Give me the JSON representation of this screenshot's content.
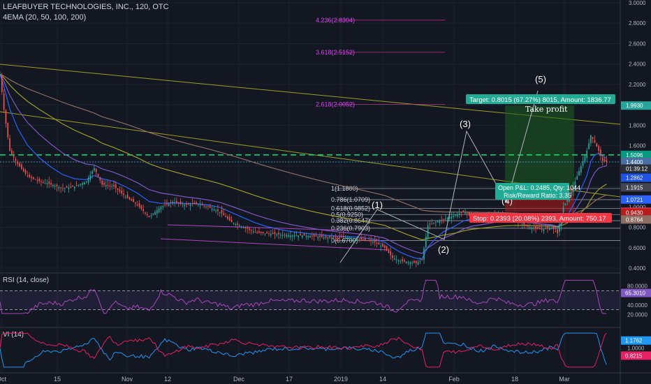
{
  "header": {
    "title": "LEAFBUYER TECHNOLOGIES, INC., 120, OTC",
    "indicator": "4EMA (20, 50, 100, 200)"
  },
  "rsi": {
    "label": "RSI (14, close)",
    "axis_ticks": [
      "80.0000",
      "40.0000",
      "20.0000"
    ],
    "current": "65.3010",
    "upper_band": 70,
    "lower_band": 30
  },
  "vi": {
    "label": "VI (14)",
    "axis_ticks": [
      "1.0000"
    ],
    "current_plus": "1.1762",
    "current_minus": "0.8215"
  },
  "time_axis": [
    "Oct",
    "15",
    "Nov",
    "12",
    "Dec",
    "17",
    "2019",
    "14",
    "Feb",
    "18",
    "Mar"
  ],
  "fib_levels": [
    {
      "label": "4.236(2.8304)",
      "value": 2.8304
    },
    {
      "label": "3.618(2.5152)",
      "value": 2.5152
    },
    {
      "label": "2.618(2.0052)",
      "value": 2.0052
    },
    {
      "label": "1(1.1800)",
      "value": 1.18
    },
    {
      "label": "0.786(1.0709)",
      "value": 1.0709
    },
    {
      "label": "0.618(0.9852)",
      "value": 0.9852
    },
    {
      "label": "0.5(0.9250)",
      "value": 0.925
    },
    {
      "label": "0.382(0.8647)",
      "value": 0.8647
    },
    {
      "label": "0.236(0.7903)",
      "value": 0.7903
    },
    {
      "label": "0(0.6700)",
      "value": 0.67
    }
  ],
  "waves": [
    "(1)",
    "(2)",
    "(3)",
    "(4)",
    "(5)"
  ],
  "position": {
    "target": "Target: 0.8015 (67.27%) 8015, Amount: 1836.77",
    "take_profit": "Take profit",
    "open_pnl": "Open P&L: 0.2485, Qty: 1044",
    "risk_reward": "Risk/Reward Ratio: 3.35",
    "stop": "Stop: 0.2393 (20.08%) 2393, Amount: 750.17",
    "entry": 1.1915,
    "target_price": 1.993,
    "stop_price": 0.9522
  },
  "price_axis_labels": [
    {
      "text": "1.9930",
      "value": 1.993,
      "color": "#26a69a"
    },
    {
      "text": "1.5096",
      "value": 1.5096,
      "color": "#089981"
    },
    {
      "text": "1.4400",
      "value": 1.44,
      "color": "#4a6fa5"
    },
    {
      "text": "01:39:12",
      "value": 1.375,
      "color": "#2a2e39"
    },
    {
      "text": "1.2862",
      "value": 1.2862,
      "color": "#1e53e5"
    },
    {
      "text": "1.1915",
      "value": 1.1915,
      "color": "#434651"
    },
    {
      "text": "1.0721",
      "value": 1.0721,
      "color": "#2962ff"
    },
    {
      "text": "0.9522",
      "value": 0.9522,
      "color": "#f23645"
    },
    {
      "text": "0.9430",
      "value": 0.943,
      "color": "#b71c1c"
    },
    {
      "text": "0.8764",
      "value": 0.8764,
      "color": "#8d6e63"
    }
  ],
  "chart_data": {
    "type": "candlestick",
    "title": "LEAFBUYER TECHNOLOGIES, INC., 120, OTC",
    "y_ticks": [
      3.0,
      2.8,
      2.6,
      2.4,
      2.2,
      2.0,
      1.8,
      1.6,
      1.4,
      1.2,
      1.0,
      0.8,
      0.6,
      0.4
    ],
    "y_tick_labels": [
      "3.0000",
      "2.8000",
      "2.6000",
      "2.4000",
      "2.2000",
      "2.0000",
      "1.8000",
      "1.6000",
      "1.4000",
      "1.2000",
      "1.0000",
      "0.8000",
      "0.6000",
      "0.4000"
    ],
    "ylim": [
      0.38,
      3.0
    ],
    "x_labels": [
      "Oct",
      "15",
      "Nov",
      "12",
      "Dec",
      "17",
      "2019",
      "14",
      "Feb",
      "18",
      "Mar"
    ],
    "close_path": [
      {
        "x": 0,
        "y": 2.3
      },
      {
        "x": 2,
        "y": 1.95
      },
      {
        "x": 5,
        "y": 1.55
      },
      {
        "x": 9,
        "y": 1.42
      },
      {
        "x": 14,
        "y": 1.3
      },
      {
        "x": 20,
        "y": 1.25
      },
      {
        "x": 26,
        "y": 1.22
      },
      {
        "x": 32,
        "y": 1.18
      },
      {
        "x": 38,
        "y": 1.2
      },
      {
        "x": 44,
        "y": 1.25
      },
      {
        "x": 48,
        "y": 1.38
      },
      {
        "x": 52,
        "y": 1.22
      },
      {
        "x": 58,
        "y": 1.2
      },
      {
        "x": 64,
        "y": 1.1
      },
      {
        "x": 70,
        "y": 1.02
      },
      {
        "x": 76,
        "y": 0.9
      },
      {
        "x": 82,
        "y": 1.0
      },
      {
        "x": 88,
        "y": 1.05
      },
      {
        "x": 94,
        "y": 1.02
      },
      {
        "x": 100,
        "y": 1.03
      },
      {
        "x": 106,
        "y": 1.0
      },
      {
        "x": 112,
        "y": 0.95
      },
      {
        "x": 118,
        "y": 0.85
      },
      {
        "x": 124,
        "y": 0.8
      },
      {
        "x": 130,
        "y": 0.75
      },
      {
        "x": 136,
        "y": 0.74
      },
      {
        "x": 142,
        "y": 0.73
      },
      {
        "x": 148,
        "y": 0.72
      },
      {
        "x": 154,
        "y": 0.72
      },
      {
        "x": 160,
        "y": 0.71
      },
      {
        "x": 166,
        "y": 0.7
      },
      {
        "x": 172,
        "y": 0.7
      },
      {
        "x": 178,
        "y": 0.7
      },
      {
        "x": 184,
        "y": 0.68
      },
      {
        "x": 190,
        "y": 0.66
      },
      {
        "x": 196,
        "y": 0.6
      },
      {
        "x": 200,
        "y": 0.5
      },
      {
        "x": 204,
        "y": 0.47
      },
      {
        "x": 208,
        "y": 0.46
      },
      {
        "x": 212,
        "y": 0.45
      },
      {
        "x": 215,
        "y": 0.48
      },
      {
        "x": 218,
        "y": 0.82
      },
      {
        "x": 222,
        "y": 0.85
      },
      {
        "x": 226,
        "y": 0.88
      },
      {
        "x": 232,
        "y": 0.92
      },
      {
        "x": 236,
        "y": 0.95
      },
      {
        "x": 240,
        "y": 0.92
      },
      {
        "x": 246,
        "y": 0.9
      },
      {
        "x": 252,
        "y": 0.93
      },
      {
        "x": 258,
        "y": 0.9
      },
      {
        "x": 264,
        "y": 0.85
      },
      {
        "x": 270,
        "y": 0.8
      },
      {
        "x": 276,
        "y": 0.78
      },
      {
        "x": 281,
        "y": 0.8
      },
      {
        "x": 284,
        "y": 0.74
      },
      {
        "x": 287,
        "y": 1.0
      },
      {
        "x": 290,
        "y": 1.1
      },
      {
        "x": 293,
        "y": 1.25
      },
      {
        "x": 296,
        "y": 1.4
      },
      {
        "x": 299,
        "y": 1.55
      },
      {
        "x": 301,
        "y": 1.7
      },
      {
        "x": 303,
        "y": 1.63
      },
      {
        "x": 305,
        "y": 1.55
      },
      {
        "x": 307,
        "y": 1.45
      },
      {
        "x": 309,
        "y": 1.44
      }
    ]
  }
}
